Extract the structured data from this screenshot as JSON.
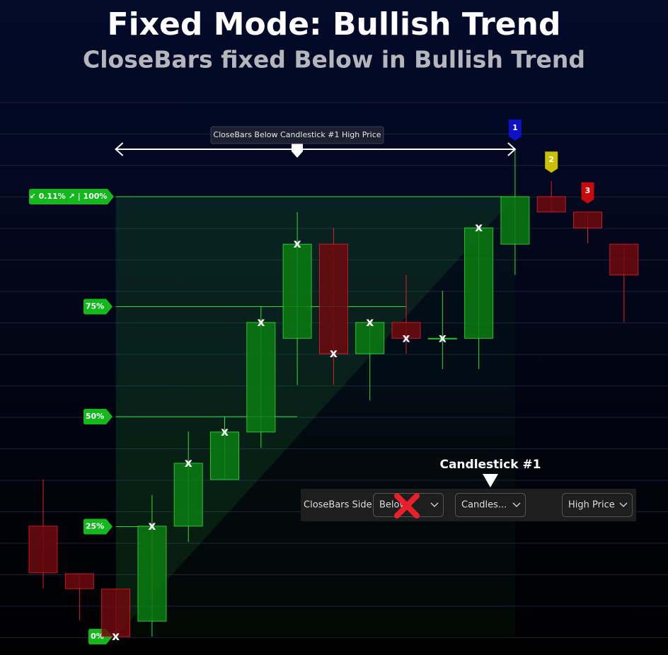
{
  "title": "Fixed Mode: Bullish Trend",
  "subtitle": "CloseBars fixed Below in Bullish Trend",
  "chart_data": {
    "type": "candlestick",
    "ylim": [
      0,
      100
    ],
    "yticks": [
      {
        "value": 0,
        "label": "0%"
      },
      {
        "value": 25,
        "label": "25%"
      },
      {
        "value": 50,
        "label": "50%"
      },
      {
        "value": 75,
        "label": "75%"
      },
      {
        "value": 100,
        "label": "↙ 0.11% ↗ | 100%"
      }
    ],
    "open": [
      25.1,
      14.3,
      10.8,
      3.5,
      25.1,
      35.7,
      46.5,
      67.8,
      89.2,
      64.3,
      71.4,
      67.8,
      67.8,
      89.2,
      100,
      96.5,
      89.2
    ],
    "high": [
      35.7,
      14.3,
      10.8,
      32.2,
      46.6,
      50,
      75.1,
      96.5,
      92.9,
      71.4,
      82.2,
      78.6,
      92.9,
      110.8,
      103.5,
      96.5,
      89.2
    ],
    "low": [
      10.9,
      3.7,
      0,
      0,
      21.5,
      35.7,
      42.9,
      57.2,
      57.2,
      53.7,
      64.3,
      60.8,
      60.8,
      82.2,
      96.5,
      89.4,
      71.5
    ],
    "close": [
      14.5,
      10.9,
      0,
      25.1,
      39.4,
      46.5,
      71.4,
      89.2,
      64.3,
      71.4,
      67.8,
      67.8,
      92.9,
      100,
      96.5,
      92.9,
      82.2
    ],
    "up_color": "#0b7d12",
    "down_color": "#6e0a0e",
    "close_marker": "x",
    "range_annotation": "CloseBars Below Candlestick #1 High Price",
    "pins": [
      "1",
      "2",
      "3"
    ],
    "pin_colors": [
      "#1010c8",
      "#c8c000",
      "#c80a0a"
    ]
  },
  "anchor_label": "Candlestick #1",
  "settings": {
    "label": "CloseBars Side",
    "side": "Below",
    "reference": "Candles...",
    "price": "High Price"
  }
}
